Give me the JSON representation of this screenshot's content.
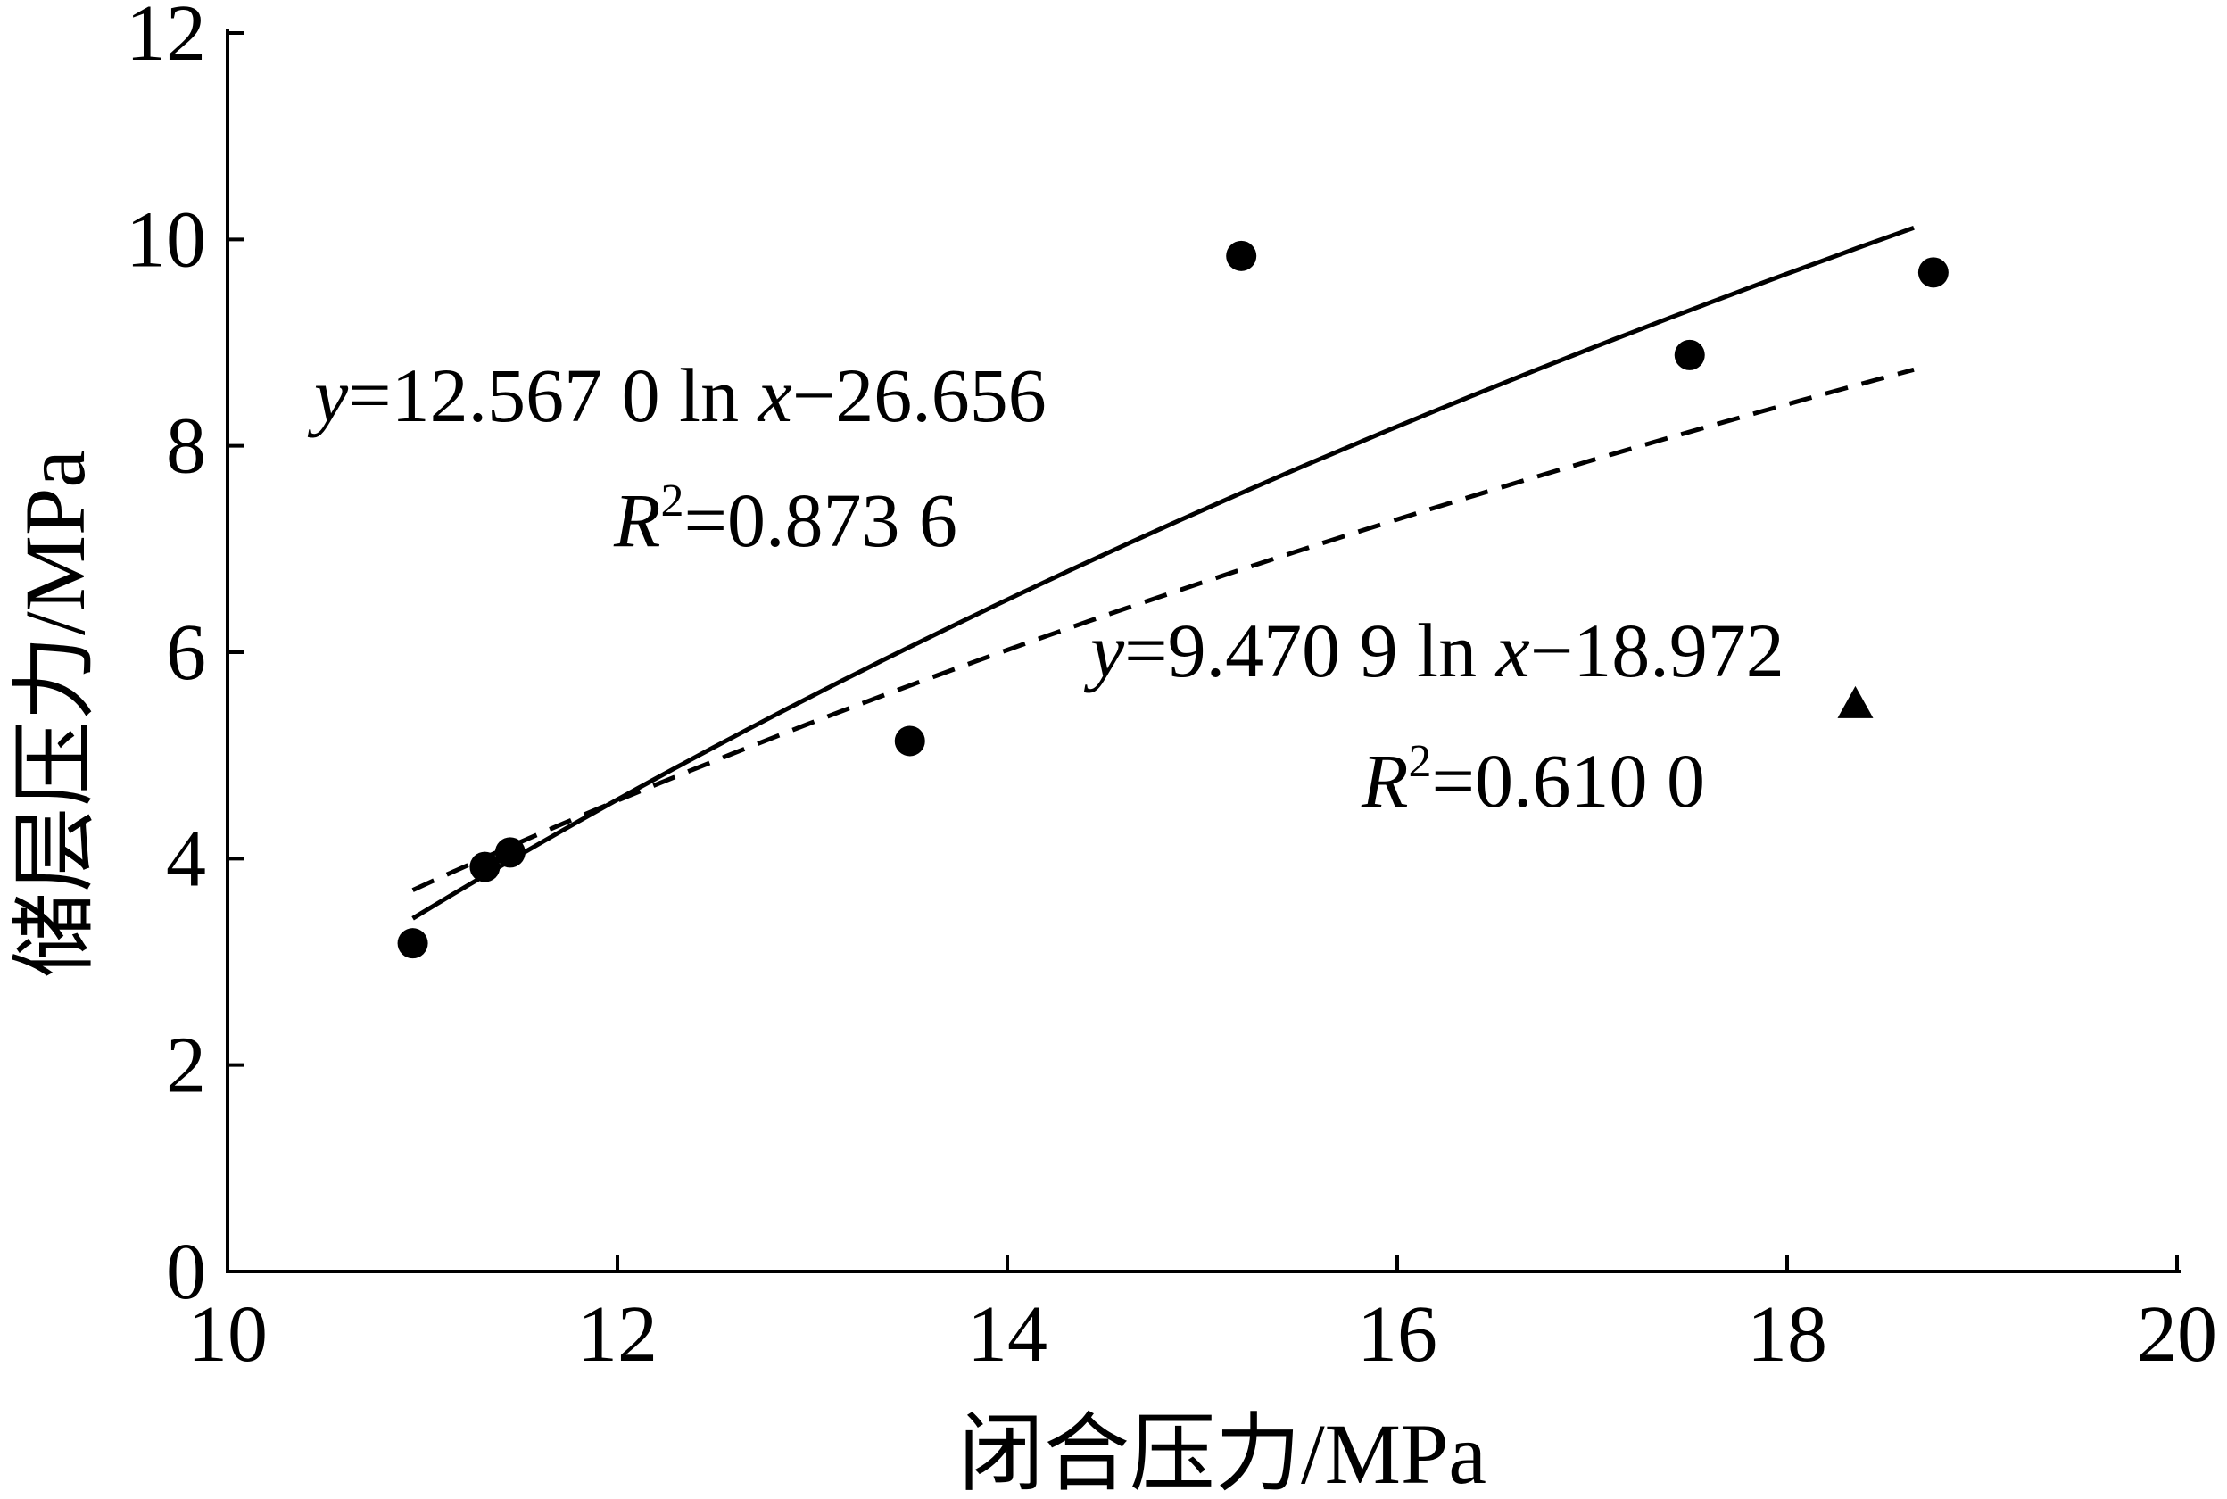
{
  "chart_data": {
    "type": "scatter",
    "xlabel": "闭合压力/MPa",
    "ylabel": "储层压力/MPa",
    "xlim": [
      10,
      20
    ],
    "ylim": [
      0,
      12
    ],
    "xticks": [
      10,
      12,
      14,
      16,
      18,
      20
    ],
    "yticks": [
      0,
      2,
      4,
      6,
      8,
      10,
      12
    ],
    "series": [
      {
        "marker": "circle",
        "points": [
          {
            "x": 10.95,
            "y": 3.18
          },
          {
            "x": 11.32,
            "y": 3.92
          },
          {
            "x": 11.45,
            "y": 4.06
          },
          {
            "x": 13.5,
            "y": 5.14
          },
          {
            "x": 15.2,
            "y": 9.84
          },
          {
            "x": 17.5,
            "y": 8.88
          },
          {
            "x": 18.75,
            "y": 9.68
          }
        ]
      },
      {
        "marker": "triangle",
        "points": [
          {
            "x": 18.35,
            "y": 5.5
          }
        ]
      }
    ],
    "fits": [
      {
        "style": "solid",
        "a": 12.567,
        "b": -26.656,
        "x_range": [
          10.95,
          18.65
        ],
        "equation_prefix": "=12.567 0 ln ",
        "equation_suffix": "−26.656",
        "r2_text": "=0.873 6"
      },
      {
        "style": "dashed",
        "a": 9.4709,
        "b": -18.972,
        "x_range": [
          10.95,
          18.65
        ],
        "equation_prefix": "=9.470 9 ln ",
        "equation_suffix": "−18.972",
        "r2_text": "=0.610 0"
      }
    ]
  }
}
